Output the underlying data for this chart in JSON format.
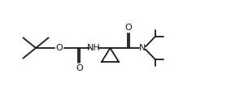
{
  "bg_color": "#ffffff",
  "line_color": "#1a1a1a",
  "line_width": 1.3,
  "font_size": 7.5,
  "font_family": "DejaVu Sans",
  "xlim": [
    0,
    10
  ],
  "ylim": [
    0,
    4.2
  ]
}
